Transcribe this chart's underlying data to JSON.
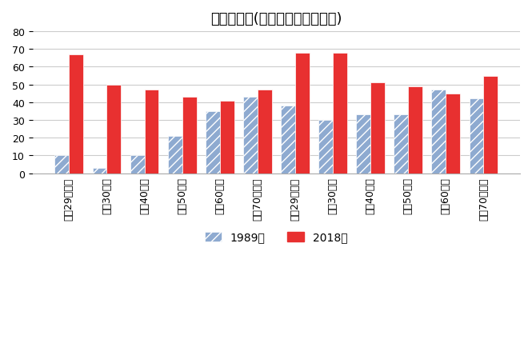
{
  "title": "生活満足度(「満足」－「不満」)",
  "categories": [
    "男・29歳以下",
    "男・30歳台",
    "男・40歳台",
    "男・50歳台",
    "男・60歳台",
    "男・70歳以上",
    "女・29歳以下",
    "女・30歳台",
    "女・40歳台",
    "女・50歳台",
    "女・60歳台",
    "女・70歳以上"
  ],
  "values_1989": [
    10,
    3,
    10,
    21,
    35,
    43,
    38,
    30,
    33,
    33,
    47,
    42
  ],
  "values_2018": [
    67,
    50,
    47,
    43,
    41,
    47,
    68,
    68,
    51,
    49,
    45,
    55
  ],
  "color_1989": "#8EAAD0",
  "color_2018": "#E83030",
  "hatch_1989": "///",
  "ylim": [
    0,
    80
  ],
  "yticks": [
    0,
    10,
    20,
    30,
    40,
    50,
    60,
    70,
    80
  ],
  "legend_1989": "1989年",
  "legend_2018": "2018年",
  "bar_width": 0.38,
  "title_fontsize": 13,
  "tick_fontsize": 9,
  "legend_fontsize": 10,
  "background_color": "#ffffff",
  "grid_color": "#cccccc"
}
